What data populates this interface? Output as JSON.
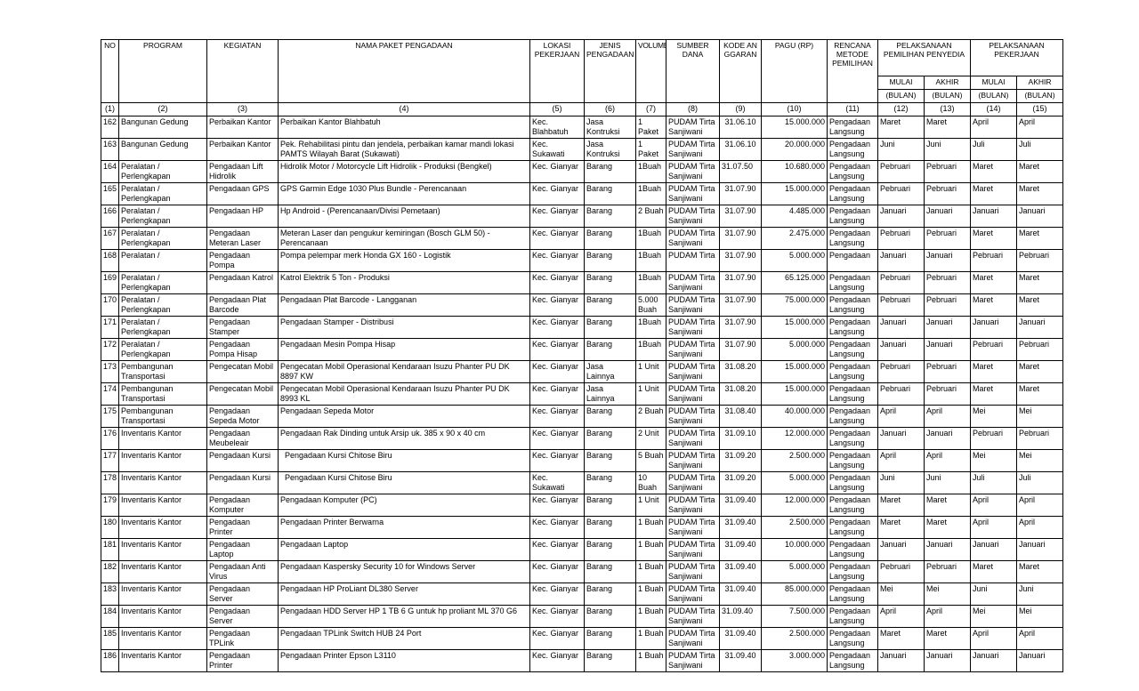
{
  "header": {
    "no": "NO",
    "program": "PROGRAM",
    "kegiatan": "KEGIATAN",
    "nama_paket": "NAMA PAKET PENGADAAN",
    "lokasi": "LOKASI PEKERJAAN",
    "jenis": "JENIS PENGADAAN",
    "volume": "VOLUME",
    "sumber_dana": "SUMBER DANA",
    "kode_anggaran": "KODE ANGGARAN",
    "pagu": "PAGU (RP)",
    "metode": "RENCANA METODE PEMILIHAN",
    "pelaksanaan_pemilihan": "PELAKSANAAN PEMILIHAN PENYEDIA",
    "pelaksanaan_pekerjaan": "PELAKSANAAN PEKERJAAN",
    "mulai": "MULAI",
    "akhir": "AKHIR",
    "bulan": "(BULAN)"
  },
  "col_numbers": [
    "(1)",
    "(2)",
    "(3)",
    "(4)",
    "(5)",
    "(6)",
    "(7)",
    "(8)",
    "(9)",
    "(10)",
    "(11)",
    "(12)",
    "(13)",
    "(14)",
    "(15)"
  ],
  "rows": [
    {
      "no": "162",
      "program": "Bangunan Gedung",
      "kegiatan": "Perbaikan Kantor",
      "nama": "Perbaikan Kantor Blahbatuh",
      "lokasi": "Kec. Blahbatuh",
      "jenis": "Jasa Kontruksi",
      "volume": "1 Paket",
      "sumber": "PUDAM Tirta Sanjiwani",
      "kode": "31.06.10",
      "pagu": "15.000.000",
      "metode": "Pengadaan Langsung",
      "m1": "Maret",
      "a1": "Maret",
      "m2": "April",
      "a2": "April"
    },
    {
      "no": "163",
      "program": "Bangunan Gedung",
      "kegiatan": "Perbaikan Kantor",
      "nama": "Pek. Rehabilitasi pintu dan jendela, perbaikan kamar mandi lokasi PAMTS Wilayah Barat (Sukawati)",
      "lokasi": "Kec. Sukawati",
      "jenis": "Jasa Kontruksi",
      "volume": "1 Paket",
      "sumber": "PUDAM Tirta Sanjiwani",
      "kode": "31.06.10",
      "pagu": "20.000.000",
      "metode": "Pengadaan Langsung",
      "m1": "Juni",
      "a1": "Juni",
      "m2": "Juli",
      "a2": "Juli"
    },
    {
      "no": "164",
      "program": "Peralatan / Perlengkapan",
      "kegiatan": "Pengadaan Lift Hidrolik",
      "nama": "Hidrolik Motor / Motorcycle Lift Hidrolik - Produksi (Bengkel)",
      "lokasi": "Kec. Gianyar",
      "jenis": "Barang",
      "volume": "1Buah",
      "sumber": "PUDAM Tirta Sanjiwani",
      "kode": "31.07.50",
      "kode_left": true,
      "pagu": "10.680.000",
      "metode": "Pengadaan Langsung",
      "m1": "Pebruari",
      "a1": "Pebruari",
      "m2": "Maret",
      "a2": "Maret"
    },
    {
      "no": "165",
      "program": "Peralatan / Perlengkapan",
      "kegiatan": "Pengadaan GPS",
      "nama": "GPS Garmin Edge 1030 Plus Bundle - Perencanaan",
      "lokasi": "Kec. Gianyar",
      "jenis": "Barang",
      "volume": "1Buah",
      "sumber": "PUDAM Tirta Sanjiwani",
      "kode": "31.07.90",
      "pagu": "15.000.000",
      "metode": "Pengadaan Langsung",
      "m1": "Pebruari",
      "a1": "Pebruari",
      "m2": "Maret",
      "a2": "Maret"
    },
    {
      "no": "166",
      "program": "Peralatan / Perlengkapan",
      "kegiatan": "Pengadaan HP",
      "nama": "Hp Android - (Perencanaan/Divisi Pemetaan)",
      "lokasi": "Kec. Gianyar",
      "jenis": "Barang",
      "volume": "2 Buah",
      "sumber": "PUDAM Tirta Sanjiwani",
      "kode": "31.07.90",
      "pagu": "4.485.000",
      "metode": "Pengadaan Langsung",
      "m1": "Januari",
      "a1": "Januari",
      "m2": "Januari",
      "a2": "Januari"
    },
    {
      "no": "167",
      "program": "Peralatan / Perlengkapan",
      "kegiatan": "Pengadaan Meteran Laser",
      "nama": "Meteran Laser dan pengukur kemiringan (Bosch GLM 50) - Perencanaan",
      "lokasi": "Kec. Gianyar",
      "jenis": "Barang",
      "volume": "1Buah",
      "sumber": "PUDAM Tirta Sanjiwani",
      "kode": "31.07.90",
      "pagu": "2.475.000",
      "metode": "Pengadaan Langsung",
      "m1": "Pebruari",
      "a1": "Pebruari",
      "m2": "Maret",
      "a2": "Maret"
    },
    {
      "no": "168",
      "program": "Peralatan /",
      "kegiatan": "Pengadaan Pompa",
      "nama": "Pompa pelempar merk Honda GX 160 - Logistik",
      "lokasi": "Kec. Gianyar",
      "jenis": "Barang",
      "volume": "1Buah",
      "sumber": "PUDAM Tirta",
      "kode": "31.07.90",
      "pagu": "5.000.000",
      "metode": "Pengadaan",
      "m1": "Januari",
      "a1": "Januari",
      "m2": "Pebruari",
      "a2": "Pebruari",
      "single": true
    },
    {
      "no": "169",
      "program": "Peralatan / Perlengkapan",
      "kegiatan": "Pengadaan Katrol",
      "nama": "Katrol Elektrik 5 Ton - Produksi",
      "lokasi": "Kec. Gianyar",
      "jenis": "Barang",
      "volume": "1Buah",
      "sumber": "PUDAM Tirta Sanjiwani",
      "kode": "31.07.90",
      "pagu": "65.125.000",
      "metode": "Pengadaan Langsung",
      "m1": "Pebruari",
      "a1": "Pebruari",
      "m2": "Maret",
      "a2": "Maret"
    },
    {
      "no": "170",
      "program": "Peralatan / Perlengkapan",
      "kegiatan": "Pengadaan Plat Barcode",
      "nama": "Pengadaan Plat Barcode - Langganan",
      "lokasi": "Kec. Gianyar",
      "jenis": "Barang",
      "volume": "5.000 Buah",
      "sumber": "PUDAM Tirta Sanjiwani",
      "kode": "31.07.90",
      "pagu": "75.000.000",
      "metode": "Pengadaan Langsung",
      "m1": "Pebruari",
      "a1": "Pebruari",
      "m2": "Maret",
      "a2": "Maret"
    },
    {
      "no": "171",
      "program": "Peralatan / Perlengkapan",
      "kegiatan": "Pengadaan Stamper",
      "nama": "Pengadaan Stamper - Distribusi",
      "lokasi": "Kec. Gianyar",
      "jenis": "Barang",
      "volume": "1Buah",
      "sumber": "PUDAM Tirta Sanjiwani",
      "kode": "31.07.90",
      "pagu": "15.000.000",
      "metode": "Pengadaan Langsung",
      "m1": "Januari",
      "a1": "Januari",
      "m2": "Januari",
      "a2": "Januari"
    },
    {
      "no": "172",
      "program": "Peralatan / Perlengkapan",
      "kegiatan": "Pengadaan Pompa Hisap",
      "nama": "Pengadaan Mesin Pompa Hisap",
      "lokasi": "Kec. Gianyar",
      "jenis": "Barang",
      "volume": "1Buah",
      "sumber": "PUDAM Tirta Sanjiwani",
      "kode": "31.07.90",
      "pagu": "5.000.000",
      "metode": "Pengadaan Langsung",
      "m1": "Januari",
      "a1": "Januari",
      "m2": "Pebruari",
      "a2": "Pebruari"
    },
    {
      "no": "173",
      "program": "Pembangunan Transportasi",
      "kegiatan": "Pengecatan Mobil",
      "nama": "Pengecatan Mobil Operasional Kendaraan Isuzu Phanter PU DK 8897 KW",
      "lokasi": "Kec. Gianyar",
      "jenis": "Jasa Lainnya",
      "volume": "1 Unit",
      "sumber": "PUDAM Tirta Sanjiwani",
      "kode": "31.08.20",
      "pagu": "15.000.000",
      "metode": "Pengadaan Langsung",
      "m1": "Pebruari",
      "a1": "Pebruari",
      "m2": "Maret",
      "a2": "Maret"
    },
    {
      "no": "174",
      "program": "Pembangunan Transportasi",
      "kegiatan": "Pengecatan Mobil",
      "nama": "Pengecatan Mobil Operasional Kendaraan Isuzu Phanter PU DK 8993 KL",
      "lokasi": "Kec. Gianyar",
      "jenis": "Jasa Lainnya",
      "volume": "1 Unit",
      "sumber": "PUDAM Tirta Sanjiwani",
      "kode": "31.08.20",
      "pagu": "15.000.000",
      "metode": "Pengadaan Langsung",
      "m1": "Pebruari",
      "a1": "Pebruari",
      "m2": "Maret",
      "a2": "Maret"
    },
    {
      "no": "175",
      "program": "Pembangunan Transportasi",
      "kegiatan": "Pengadaan Sepeda Motor",
      "nama": "Pengadaan Sepeda Motor",
      "lokasi": "Kec. Gianyar",
      "jenis": "Barang",
      "volume": "2 Buah",
      "sumber": "PUDAM Tirta Sanjiwani",
      "kode": "31.08.40",
      "pagu": "40.000.000",
      "metode": "Pengadaan Langsung",
      "m1": "April",
      "a1": "April",
      "m2": "Mei",
      "a2": "Mei"
    },
    {
      "no": "176",
      "program": "Inventaris Kantor",
      "kegiatan": "Pengadaan Meubeleair",
      "nama": "Pengadaan Rak Dinding untuk Arsip uk. 385 x 90 x 40 cm",
      "lokasi": "Kec. Gianyar",
      "jenis": "Barang",
      "volume": "2 Unit",
      "sumber": "PUDAM Tirta Sanjiwani",
      "kode": "31.09.10",
      "pagu": "12.000.000",
      "metode": "Pengadaan Langsung",
      "m1": "Januari",
      "a1": "Januari",
      "m2": "Pebruari",
      "a2": "Pebruari"
    },
    {
      "no": "177",
      "program": "Inventaris Kantor",
      "kegiatan": "Pengadaan Kursi",
      "nama": "  Pengadaan Kursi Chitose Biru",
      "lokasi": "Kec. Gianyar",
      "jenis": "Barang",
      "volume": "5 Buah",
      "sumber": "PUDAM Tirta Sanjiwani",
      "kode": "31.09.20",
      "pagu": "2.500.000",
      "metode": "Pengadaan Langsung",
      "m1": "April",
      "a1": "April",
      "m2": "Mei",
      "a2": "Mei"
    },
    {
      "no": "178",
      "program": "Inventaris Kantor",
      "kegiatan": "Pengadaan Kursi",
      "nama": "  Pengadaan Kursi Chitose Biru",
      "lokasi": "Kec. Sukawati",
      "jenis": "Barang",
      "volume": "10 Buah",
      "sumber": "PUDAM Tirta Sanjiwani",
      "kode": "31.09.20",
      "pagu": "5.000.000",
      "metode": "Pengadaan Langsung",
      "m1": "Juni",
      "a1": "Juni",
      "m2": "Juli",
      "a2": "Juli"
    },
    {
      "no": "179",
      "program": "Inventaris Kantor",
      "kegiatan": "Pengadaan Komputer",
      "nama": "Pengadaan Komputer (PC)",
      "lokasi": "Kec. Gianyar",
      "jenis": "Barang",
      "volume": "1 Unit",
      "sumber": "PUDAM Tirta Sanjiwani",
      "kode": "31.09.40",
      "pagu": "12.000.000",
      "metode": "Pengadaan Langsung",
      "m1": "Maret",
      "a1": "Maret",
      "m2": "April",
      "a2": "April"
    },
    {
      "no": "180",
      "program": "Inventaris Kantor",
      "kegiatan": "Pengadaan Printer",
      "nama": "Pengadaan Printer Berwarna",
      "lokasi": "Kec. Gianyar",
      "jenis": "Barang",
      "volume": "1 Buah",
      "sumber": "PUDAM Tirta Sanjiwani",
      "kode": "31.09.40",
      "pagu": "2.500.000",
      "metode": "Pengadaan Langsung",
      "m1": "Maret",
      "a1": "Maret",
      "m2": "April",
      "a2": "April"
    },
    {
      "no": "181",
      "program": "Inventaris Kantor",
      "kegiatan": "Pengadaan Laptop",
      "nama": "Pengadaan Laptop",
      "lokasi": "Kec. Gianyar",
      "jenis": "Barang",
      "volume": "1 Buah",
      "sumber": "PUDAM Tirta Sanjiwani",
      "kode": "31.09.40",
      "pagu": "10.000.000",
      "metode": "Pengadaan Langsung",
      "m1": "Januari",
      "a1": "Januari",
      "m2": "Januari",
      "a2": "Januari"
    },
    {
      "no": "182",
      "program": "Inventaris Kantor",
      "kegiatan": "Pengadaan Anti Virus",
      "nama": "Pengadaan Kaspersky Security 10 for Windows Server",
      "lokasi": "Kec. Gianyar",
      "jenis": "Barang",
      "volume": "1 Buah",
      "sumber": "PUDAM Tirta Sanjiwani",
      "kode": "31.09.40",
      "pagu": "5.000.000",
      "metode": "Pengadaan Langsung",
      "m1": "Pebruari",
      "a1": "Pebruari",
      "m2": "Maret",
      "a2": "Maret"
    },
    {
      "no": "183",
      "program": "Inventaris Kantor",
      "kegiatan": "Pengadaan Server",
      "nama": "Pengadaan HP ProLiant DL380 Server",
      "lokasi": "Kec. Gianyar",
      "jenis": "Barang",
      "volume": "1 Buah",
      "sumber": "PUDAM Tirta Sanjiwani",
      "kode": "31.09.40",
      "pagu": "85.000.000",
      "metode": "Pengadaan Langsung",
      "m1": "Mei",
      "a1": "Mei",
      "m2": "Juni",
      "a2": "Juni"
    },
    {
      "no": "184",
      "program": "Inventaris Kantor",
      "kegiatan": "Pengadaan Server",
      "nama": "Pengadaan HDD Server HP 1 TB 6 G untuk hp proliant ML 370 G6",
      "lokasi": "Kec. Gianyar",
      "jenis": "Barang",
      "volume": "1 Buah",
      "sumber": "PUDAM Tirta Sanjiwani",
      "kode": "31.09.40",
      "kode_left": true,
      "pagu": "7.500.000",
      "metode": "Pengadaan Langsung",
      "m1": "April",
      "a1": "April",
      "m2": "Mei",
      "a2": "Mei"
    },
    {
      "no": "185",
      "program": "Inventaris Kantor",
      "kegiatan": "Pengadaan TPLink",
      "nama": "Pengadaan TPLink Switch HUB 24 Port",
      "lokasi": "Kec. Gianyar",
      "jenis": "Barang",
      "volume": "1 Buah",
      "sumber": "PUDAM Tirta Sanjiwani",
      "kode": "31.09.40",
      "pagu": "2.500.000",
      "metode": "Pengadaan Langsung",
      "m1": "Maret",
      "a1": "Maret",
      "m2": "April",
      "a2": "April"
    },
    {
      "no": "186",
      "program": "Inventaris Kantor",
      "kegiatan": "Pengadaan Printer",
      "nama": "Pengadaan Printer Epson L3110",
      "lokasi": "Kec. Gianyar",
      "jenis": "Barang",
      "volume": "1 Buah",
      "sumber": "PUDAM Tirta Sanjiwani",
      "kode": "31.09.40",
      "pagu": "3.000.000",
      "metode": "Pengadaan Langsung",
      "m1": "Januari",
      "a1": "Januari",
      "m2": "Januari",
      "a2": "Januari"
    }
  ]
}
